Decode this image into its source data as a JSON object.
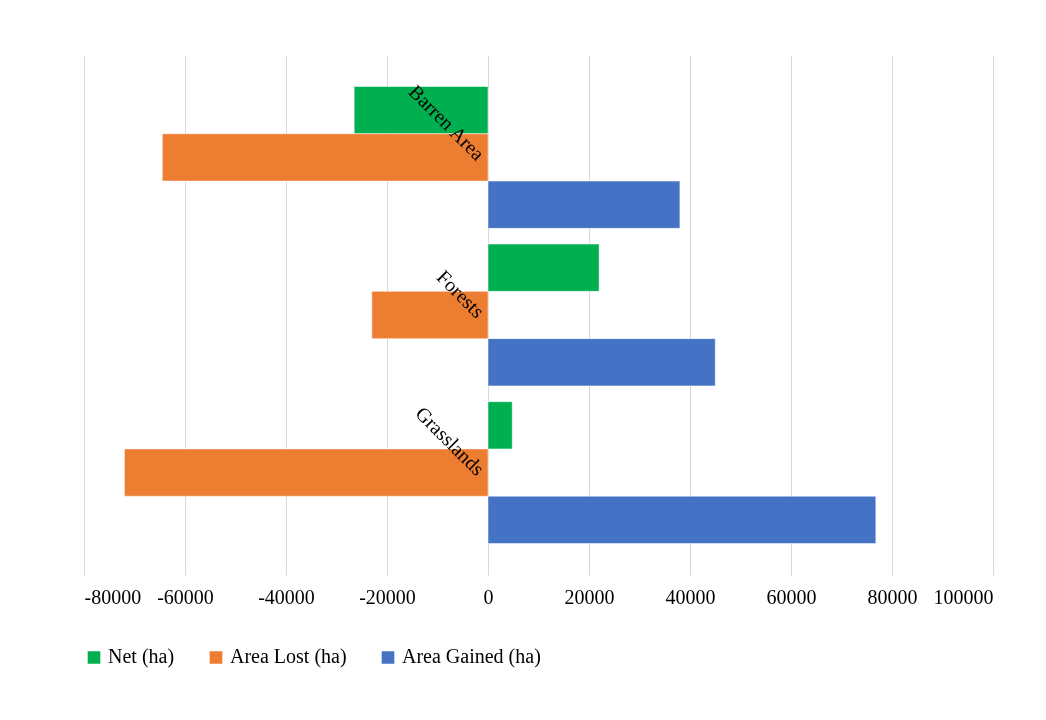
{
  "chart_data": {
    "type": "bar",
    "orientation": "horizontal",
    "categories": [
      "Barren Area",
      "Forests",
      "Grasslands"
    ],
    "series": [
      {
        "name": "Net (ha)",
        "color": "#00b050",
        "values": [
          -26500,
          22000,
          4800
        ]
      },
      {
        "name": "Area Lost (ha)",
        "color": "#ed7d31",
        "values": [
          -64500,
          -23000,
          -72000
        ]
      },
      {
        "name": "Area Gained (ha)",
        "color": "#4472c4",
        "values": [
          38000,
          45000,
          76800
        ]
      }
    ],
    "xlim": [
      -80000,
      100000
    ],
    "xticks": [
      {
        "value": -80000,
        "label": "-80000"
      },
      {
        "value": -60000,
        "label": "-60000"
      },
      {
        "value": -40000,
        "label": "-40000"
      },
      {
        "value": -20000,
        "label": "-20000"
      },
      0,
      20000,
      40000,
      60000,
      80000,
      100000
    ],
    "grid": "x",
    "legend": "bottom"
  }
}
